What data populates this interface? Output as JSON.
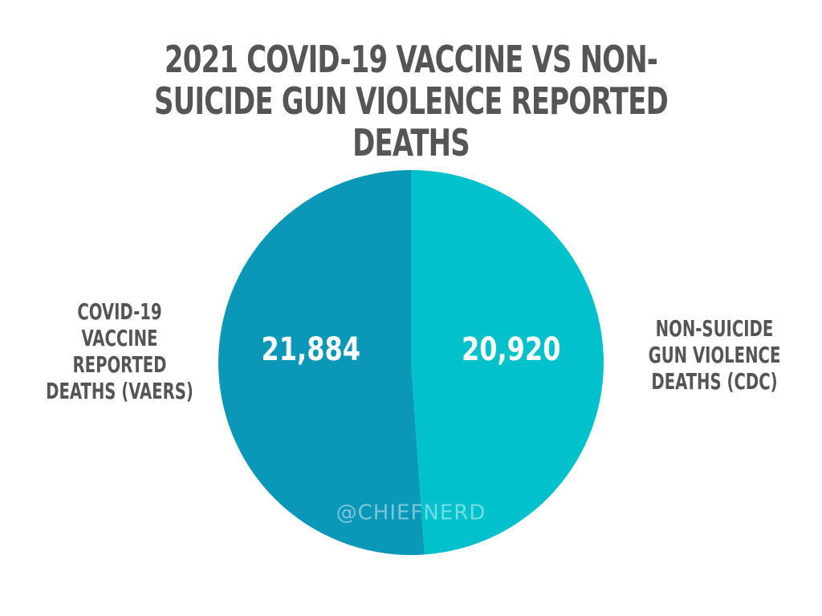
{
  "chart_data": {
    "type": "pie",
    "title": "2021 COVID-19 VACCINE VS NON-SUICIDE GUN VIOLENCE REPORTED DEATHS",
    "categories": [
      "COVID-19 VACCINE REPORTED DEATHS (VAERS)",
      "NON-SUICIDE GUN VIOLENCE DEATHS (CDC)"
    ],
    "values": [
      21884,
      20920
    ],
    "value_labels": [
      "21,884",
      "20,920"
    ],
    "colors": [
      "#0a97b8",
      "#00c1cc"
    ],
    "watermark": "@CHIEFNERD"
  }
}
